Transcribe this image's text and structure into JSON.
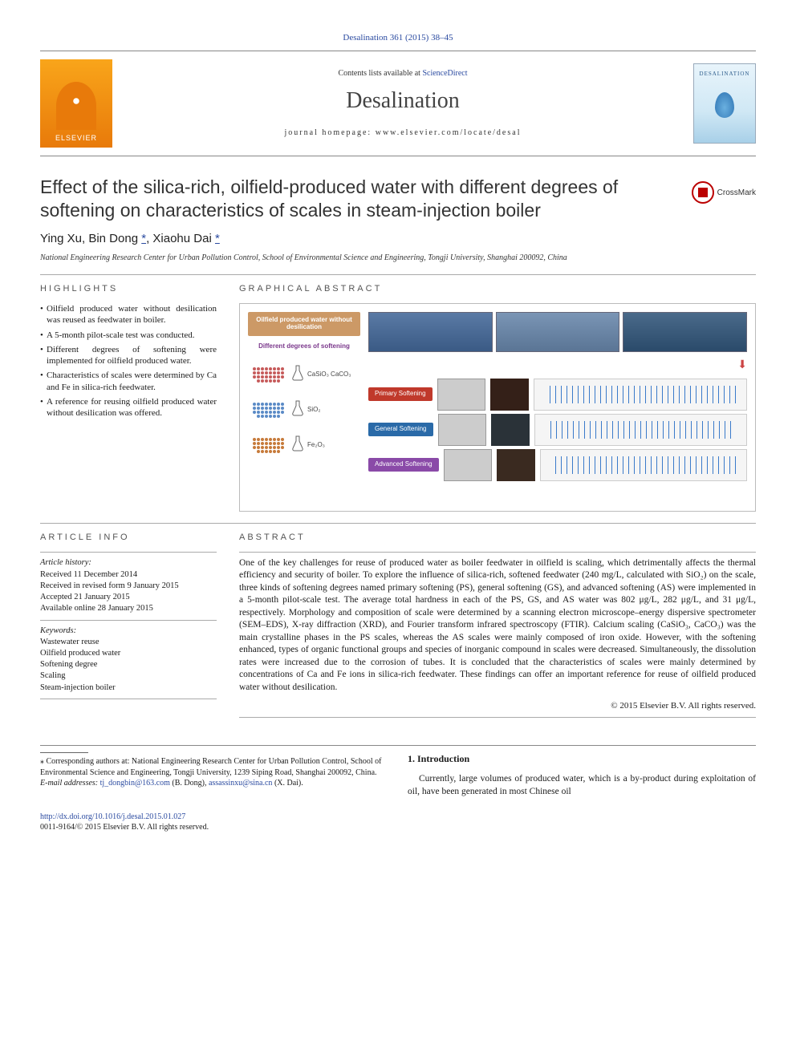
{
  "journal_ref": "Desalination 361 (2015) 38–45",
  "header": {
    "publisher": "ELSEVIER",
    "contents_prefix": "Contents lists available at ",
    "contents_link_text": "ScienceDirect",
    "journal_title": "Desalination",
    "homepage_prefix": "journal homepage: ",
    "homepage_url": "www.elsevier.com/locate/desal",
    "cover_label": "DESALINATION"
  },
  "crossmark_label": "CrossMark",
  "article_title": "Effect of the silica-rich, oilfield-produced water with different degrees of softening on characteristics of scales in steam-injection boiler",
  "authors_html": "Ying Xu, Bin Dong *, Xiaohu Dai *",
  "authors": [
    {
      "name": "Ying Xu",
      "corr": false
    },
    {
      "name": "Bin Dong",
      "corr": true
    },
    {
      "name": "Xiaohu Dai",
      "corr": true
    }
  ],
  "affiliation": "National Engineering Research Center for Urban Pollution Control, School of Environmental Science and Engineering, Tongji University, Shanghai 200092, China",
  "highlights_heading": "HIGHLIGHTS",
  "highlights": [
    "Oilfield produced water without desilication was reused as feedwater in boiler.",
    "A 5-month pilot-scale test was conducted.",
    "Different degrees of softening were implemented for oilfield produced water.",
    "Characteristics of scales were determined by Ca and Fe in silica-rich feedwater.",
    "A reference for reusing oilfield produced water without desilication was offered."
  ],
  "graphical_heading": "GRAPHICAL ABSTRACT",
  "graphical": {
    "badge": "Oilfield produced water without desilication",
    "subtitle": "Different degrees of softening",
    "rows": [
      {
        "formula": "CaSiO₃",
        "extra": "CaCO₃",
        "color": "#c65a5a",
        "label": "Primary Softening",
        "label_bg": "#c0392b",
        "sample_bg": "#342018"
      },
      {
        "formula": "SiO₂",
        "extra": "",
        "color": "#5a8ac6",
        "label": "General Softening",
        "label_bg": "#2a6aa8",
        "sample_bg": "#2a3238"
      },
      {
        "formula": "Fe₂O₃",
        "extra": "",
        "color": "#c67a3a",
        "label": "Advanced Softening",
        "label_bg": "#8a4aa8",
        "sample_bg": "#3a2a20"
      }
    ]
  },
  "article_info_heading": "ARTICLE INFO",
  "article_info": {
    "history_label": "Article history:",
    "received": "Received 11 December 2014",
    "revised": "Received in revised form 9 January 2015",
    "accepted": "Accepted 21 January 2015",
    "online": "Available online 28 January 2015",
    "keywords_label": "Keywords:",
    "keywords": [
      "Wastewater reuse",
      "Oilfield produced water",
      "Softening degree",
      "Scaling",
      "Steam-injection boiler"
    ]
  },
  "abstract_heading": "ABSTRACT",
  "abstract": "One of the key challenges for reuse of produced water as boiler feedwater in oilfield is scaling, which detrimentally affects the thermal efficiency and security of boiler. To explore the influence of silica-rich, softened feedwater (240 mg/L, calculated with SiO₂) on the scale, three kinds of softening degrees named primary softening (PS), general softening (GS), and advanced softening (AS) were implemented in a 5-month pilot-scale test. The average total hardness in each of the PS, GS, and AS water was 802 μg/L, 282 μg/L, and 31 μg/L, respectively. Morphology and composition of scale were determined by a scanning electron microscope–energy dispersive spectrometer (SEM–EDS), X-ray diffraction (XRD), and Fourier transform infrared spectroscopy (FTIR). Calcium scaling (CaSiO₃, CaCO₃) was the main crystalline phases in the PS scales, whereas the AS scales were mainly composed of iron oxide. However, with the softening enhanced, types of organic functional groups and species of inorganic compound in scales were decreased. Simultaneously, the dissolution rates were increased due to the corrosion of tubes. It is concluded that the characteristics of scales were mainly determined by concentrations of Ca and Fe ions in silica-rich feedwater. These findings can offer an important reference for reuse of oilfield produced water without desilication.",
  "copyright": "© 2015 Elsevier B.V. All rights reserved.",
  "footnotes": {
    "corr_label": "⁎ Corresponding authors at: National Engineering Research Center for Urban Pollution Control, School of Environmental Science and Engineering, Tongji University, 1239 Siping Road, Shanghai 200092, China.",
    "email_label": "E-mail addresses: ",
    "emails": [
      {
        "addr": "tj_dongbin@163.com",
        "who": " (B. Dong), "
      },
      {
        "addr": "assassinxu@sina.cn",
        "who": " (X. Dai)."
      }
    ]
  },
  "intro": {
    "heading": "1. Introduction",
    "text": "Currently, large volumes of produced water, which is a by-product during exploitation of oil, have been generated in most Chinese oil"
  },
  "doi": {
    "url": "http://dx.doi.org/10.1016/j.desal.2015.01.027",
    "issn_line": "0011-9164/© 2015 Elsevier B.V. All rights reserved."
  },
  "colors": {
    "link": "#2a4aa0",
    "elsevier_bg": "#e87a0a",
    "rule": "#888888"
  }
}
